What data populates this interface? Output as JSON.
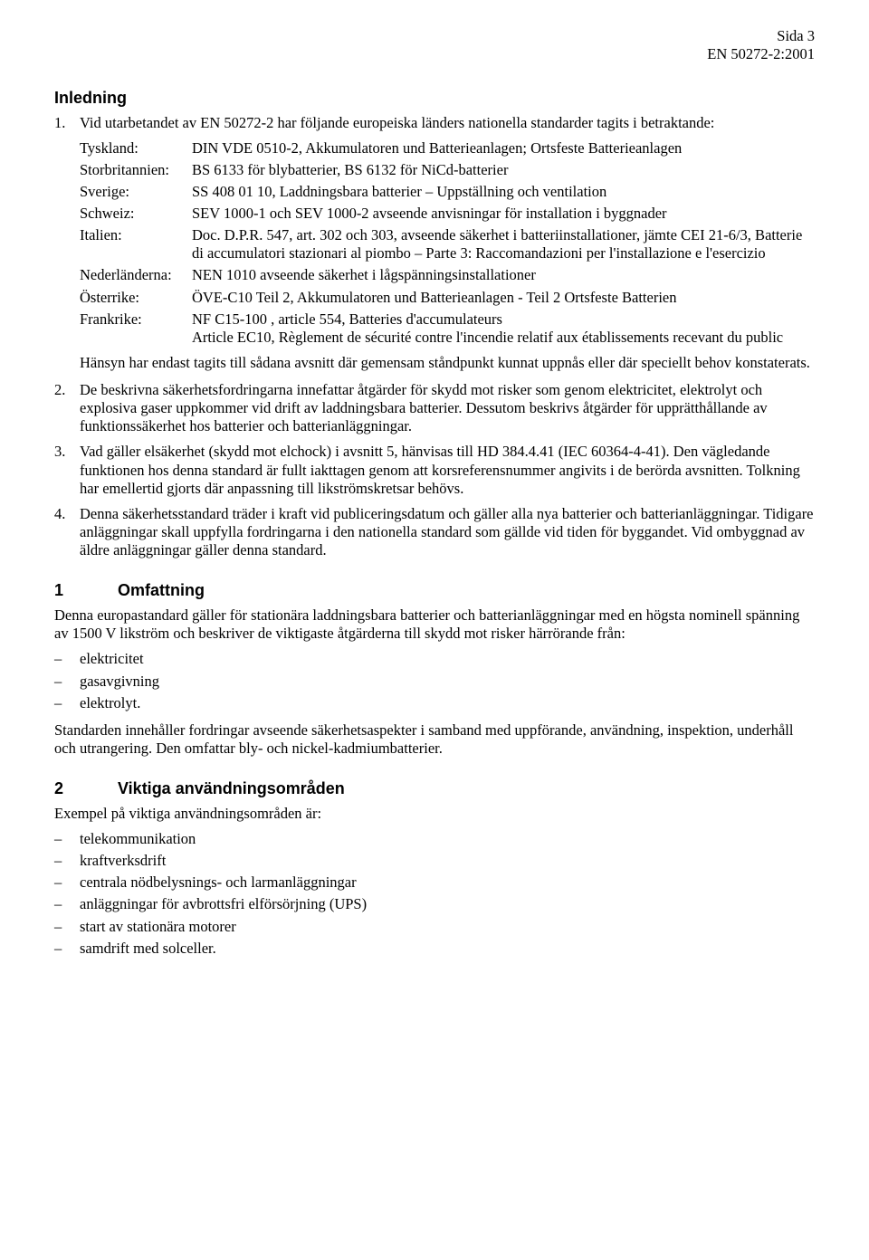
{
  "header": {
    "page_label": "Sida 3",
    "standard": "EN 50272-2:2001"
  },
  "inledning_title": "Inledning",
  "intro_items": [
    {
      "num": "1.",
      "lead": "Vid utarbetandet av EN 50272-2 har följande europeiska länders nationella standarder tagits i betraktande:",
      "countries": [
        {
          "label": "Tyskland:",
          "val": "DIN VDE 0510-2, Akkumulatoren und Batterieanlagen; Ortsfeste Batterieanlagen"
        },
        {
          "label": "Storbritannien:",
          "val": "BS 6133 för blybatterier, BS 6132 för NiCd-batterier"
        },
        {
          "label": "Sverige:",
          "val": "SS 408 01 10, Laddningsbara batterier – Uppställning och ventilation"
        },
        {
          "label": "Schweiz:",
          "val": "SEV 1000-1 och SEV 1000-2 avseende anvisningar för installation i byggnader"
        },
        {
          "label": "Italien:",
          "val": "Doc. D.P.R. 547, art. 302 och 303, avseende säkerhet i batteriinstallationer, jämte CEI 21-6/3, Batterie di accumulatori stazionari al piombo – Parte 3: Raccomandazioni per l'installazione e l'esercizio"
        },
        {
          "label": "Nederländerna:",
          "val": "NEN 1010 avseende säkerhet i lågspänningsinstallationer"
        },
        {
          "label": "Österrike:",
          "val": "ÖVE-C10 Teil 2, Akkumulatoren und Batterieanlagen - Teil 2 Ortsfeste Batterien"
        },
        {
          "label": "Frankrike:",
          "val": "NF C15-100 , article 554, Batteries d'accumulateurs\nArticle EC10, Règlement de sécurité contre l'incendie relatif aux établissements recevant du public"
        }
      ],
      "tail": "Hänsyn har endast tagits till sådana avsnitt där gemensam ståndpunkt kunnat uppnås eller där speciellt behov konstaterats."
    },
    {
      "num": "2.",
      "text": "De beskrivna säkerhetsfordringarna innefattar åtgärder för skydd mot risker som genom elektricitet, elektrolyt och explosiva gaser uppkommer vid drift av laddningsbara batterier. Dessutom beskrivs åtgärder för upprätthållande av funktionssäkerhet hos batterier och batterianläggningar."
    },
    {
      "num": "3.",
      "text": "Vad gäller elsäkerhet (skydd mot elchock) i avsnitt 5, hänvisas till HD 384.4.41 (IEC 60364-4-41). Den vägledande funktionen hos denna standard är fullt iakttagen genom att korsreferensnummer angivits i de berörda avsnitten. Tolkning har emellertid gjorts där anpassning till likströmskretsar behövs."
    },
    {
      "num": "4.",
      "text": "Denna säkerhetsstandard träder i kraft vid publiceringsdatum och gäller alla nya batterier och batterianläggningar. Tidigare anläggningar skall uppfylla fordringarna i den nationella standard som gällde vid tiden för byggandet. Vid ombyggnad av äldre anläggningar gäller denna standard."
    }
  ],
  "section1": {
    "num": "1",
    "title": "Omfattning",
    "para": "Denna europastandard gäller för stationära laddningsbara batterier och batterianläggningar med en högsta nominell spänning av 1500 V likström och beskriver de viktigaste åtgärderna till skydd mot risker härrörande från:",
    "list": [
      "elektricitet",
      "gasavgivning",
      "elektrolyt."
    ],
    "tail": "Standarden innehåller fordringar avseende säkerhetsaspekter i samband med uppförande, användning, inspektion, underhåll och utrangering. Den omfattar bly- och nickel-kadmiumbatterier."
  },
  "section2": {
    "num": "2",
    "title": "Viktiga användningsområden",
    "para": "Exempel på viktiga användningsområden är:",
    "list": [
      "telekommunikation",
      "kraftverksdrift",
      "centrala nödbelysnings- och larmanläggningar",
      "anläggningar för avbrottsfri elförsörjning (UPS)",
      "start av stationära motorer",
      "samdrift med solceller."
    ]
  }
}
